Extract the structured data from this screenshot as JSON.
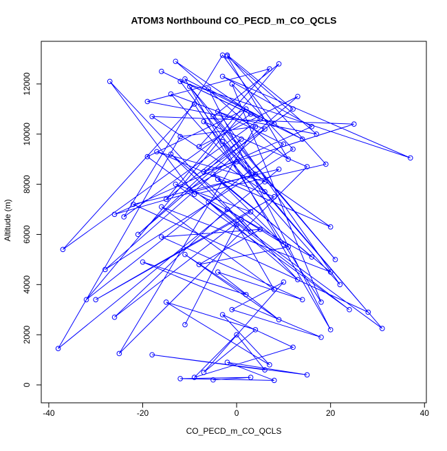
{
  "chart_data": {
    "type": "line",
    "markers": "open-circle",
    "title": "ATOM3 Northbound CO_PECD_m_CO_QCLS",
    "x_label": "CO_PECD_m_CO_QCLS",
    "y_label": "Altitude (m)",
    "color": "#0000ff",
    "xlim": [
      -41.6,
      40.4
    ],
    "ylim": [
      -714,
      13700
    ],
    "xticks": [
      -40,
      -20,
      0,
      20,
      40
    ],
    "yticks": [
      0,
      2000,
      4000,
      6000,
      8000,
      10000,
      12000
    ],
    "x": [
      -5,
      3,
      -12,
      8,
      -2,
      15,
      -18,
      6,
      0,
      -9,
      12,
      -3,
      7,
      -15,
      4,
      -7,
      10,
      -1,
      18,
      -20,
      2,
      -11,
      9,
      -4,
      14,
      -16,
      5,
      -8,
      11,
      -2,
      -26,
      1,
      13,
      -6,
      24,
      -13,
      3,
      -30,
      8,
      -5,
      16,
      -10,
      0,
      20,
      -17,
      6,
      -3,
      28,
      -22,
      9,
      -38,
      -12,
      4,
      -25,
      15,
      -7,
      31,
      -19,
      2,
      -32,
      10,
      -4,
      22,
      -14,
      6,
      -28,
      12,
      -1,
      18,
      -9,
      -37,
      3,
      -16,
      14,
      -6,
      20,
      -11,
      8,
      -3,
      -24,
      5,
      -13,
      11,
      -2,
      17,
      -19,
      7,
      -8,
      13,
      -21,
      1,
      -15,
      9,
      -5,
      21,
      -10,
      4,
      -26,
      16,
      -3,
      37,
      -12,
      6,
      -18,
      25,
      -7,
      12,
      -2,
      19,
      -9,
      -27,
      3,
      -14,
      10,
      -4,
      20,
      -16,
      8,
      0,
      -11
    ],
    "values": [
      200,
      300,
      250,
      180,
      900,
      400,
      1200,
      600,
      2000,
      300,
      1500,
      2800,
      800,
      3300,
      2200,
      500,
      4100,
      3000,
      1900,
      4900,
      3600,
      5200,
      2600,
      4500,
      3400,
      5900,
      6200,
      4800,
      5500,
      7000,
      2700,
      6600,
      4200,
      7300,
      3000,
      8000,
      6900,
      3400,
      7500,
      8400,
      5100,
      7800,
      8900,
      6300,
      9300,
      8100,
      9700,
      2900,
      7200,
      8600,
      1450,
      9900,
      10300,
      1250,
      8700,
      10500,
      2250,
      9100,
      11000,
      3400,
      9600,
      10900,
      4000,
      11600,
      10200,
      4600,
      9400,
      12000,
      3300,
      11200,
      5400,
      10800,
      12500,
      9800,
      11800,
      2200,
      12200,
      10400,
      13150,
      6700,
      10600,
      12900,
      9000,
      13100,
      10000,
      11300,
      12600,
      9500,
      11500,
      6000,
      9800,
      7400,
      12800,
      10700,
      5000,
      11900,
      8400,
      6800,
      10300,
      12300,
      9050,
      12100,
      7700,
      10700,
      10400,
      8500,
      11000,
      13150,
      8800,
      7600,
      12100,
      6100,
      9200,
      5600,
      8200,
      4500,
      7100,
      3800,
      6400,
      2400
    ]
  }
}
